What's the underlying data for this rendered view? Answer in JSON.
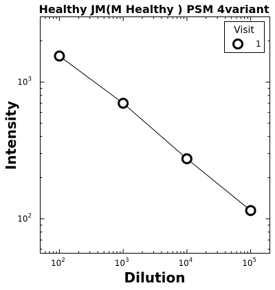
{
  "chart_data": {
    "type": "line",
    "title": "Healthy JM(M Healthy ) PSM 4variant",
    "xlabel": "Dilution",
    "ylabel": "Intensity",
    "xscale": "log",
    "yscale": "log",
    "xlim": [
      50,
      200000
    ],
    "ylim": [
      56,
      3000
    ],
    "x_ticks": [
      {
        "value": 100,
        "base": "10",
        "exp": "2"
      },
      {
        "value": 1000,
        "base": "10",
        "exp": "3"
      },
      {
        "value": 10000,
        "base": "10",
        "exp": "4"
      },
      {
        "value": 100000,
        "base": "10",
        "exp": "5"
      }
    ],
    "y_ticks": [
      {
        "value": 100,
        "base": "10",
        "exp": "2"
      },
      {
        "value": 1000,
        "base": "10",
        "exp": "3"
      }
    ],
    "grid": false,
    "legend": {
      "title": "Visit",
      "placement": "top-right"
    },
    "series": [
      {
        "name": "1",
        "x": [
          100,
          1000,
          10000,
          100000
        ],
        "y": [
          1550,
          700,
          275,
          115
        ],
        "color": "#000000",
        "marker": "open-circle"
      }
    ]
  }
}
